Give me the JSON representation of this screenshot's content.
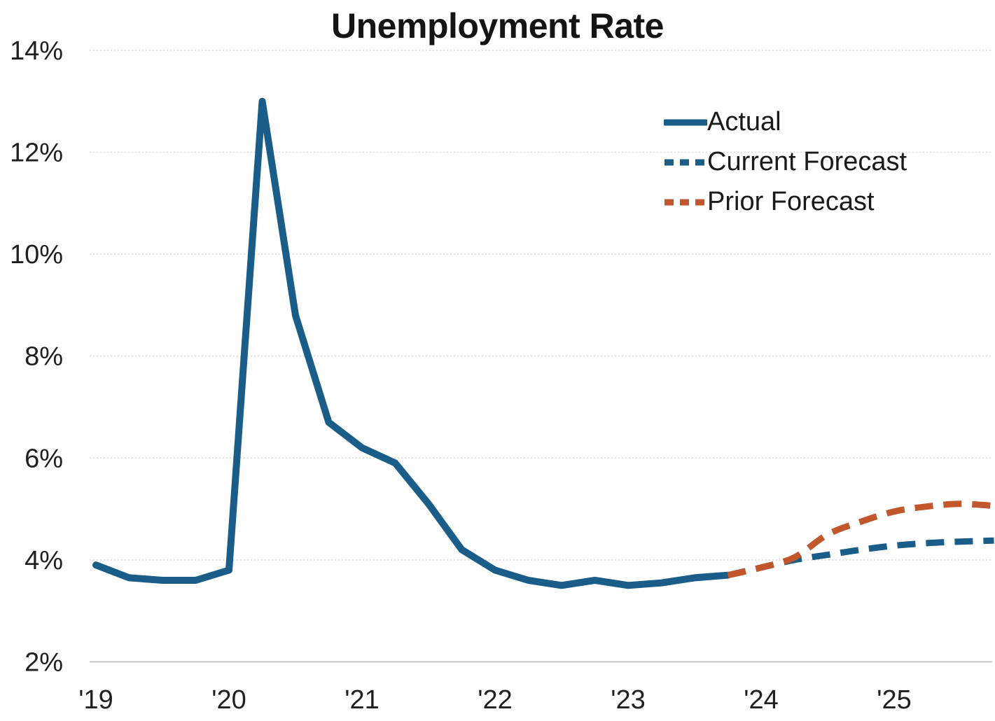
{
  "chart_data": {
    "type": "line",
    "title": "Unemployment Rate",
    "xlabel": "",
    "ylabel": "",
    "ylim": [
      2,
      14
    ],
    "grid": "horizontal-dotted",
    "legend_position": "upper-right",
    "colors": {
      "actual": "#1a5d88",
      "current_forecast": "#1a5d88",
      "prior_forecast": "#c2572c",
      "gridline": "#d9d9d9",
      "axis_line": "#c4c4c4",
      "text": "#1f1f1f"
    },
    "yticks": {
      "values": [
        2,
        4,
        6,
        8,
        10,
        12,
        14
      ],
      "labels": [
        "2%",
        "4%",
        "6%",
        "8%",
        "10%",
        "12%",
        "14%"
      ]
    },
    "xticks": {
      "years": [
        2019,
        2020,
        2021,
        2022,
        2023,
        2024,
        2025
      ],
      "labels": [
        "'19",
        "'20",
        "'21",
        "'22",
        "'23",
        "'24",
        "'25"
      ]
    },
    "series": [
      {
        "name": "Actual",
        "color": "#1a5d88",
        "style": "solid",
        "smooth": false,
        "x": [
          2019.0,
          2019.25,
          2019.5,
          2019.75,
          2020.0,
          2020.25,
          2020.5,
          2020.75,
          2021.0,
          2021.25,
          2021.5,
          2021.75,
          2022.0,
          2022.25,
          2022.5,
          2022.75,
          2023.0,
          2023.25,
          2023.5,
          2023.75
        ],
        "values": [
          3.9,
          3.65,
          3.6,
          3.6,
          3.8,
          13.0,
          8.8,
          6.7,
          6.2,
          5.9,
          5.1,
          4.2,
          3.8,
          3.6,
          3.5,
          3.6,
          3.5,
          3.55,
          3.65,
          3.7
        ]
      },
      {
        "name": "Current Forecast",
        "color": "#1a5d88",
        "style": "dashed",
        "smooth": true,
        "x": [
          2023.75,
          2024.0,
          2024.25,
          2024.5,
          2024.75,
          2025.0,
          2025.25,
          2025.5,
          2025.75
        ],
        "values": [
          3.7,
          3.85,
          4.0,
          4.1,
          4.2,
          4.28,
          4.33,
          4.36,
          4.38
        ]
      },
      {
        "name": "Prior Forecast",
        "color": "#c2572c",
        "style": "dashed",
        "smooth": true,
        "x": [
          2023.75,
          2024.0,
          2024.25,
          2024.5,
          2024.75,
          2025.0,
          2025.25,
          2025.5,
          2025.75
        ],
        "values": [
          3.7,
          3.85,
          4.05,
          4.5,
          4.75,
          4.95,
          5.05,
          5.1,
          5.06
        ]
      }
    ]
  }
}
